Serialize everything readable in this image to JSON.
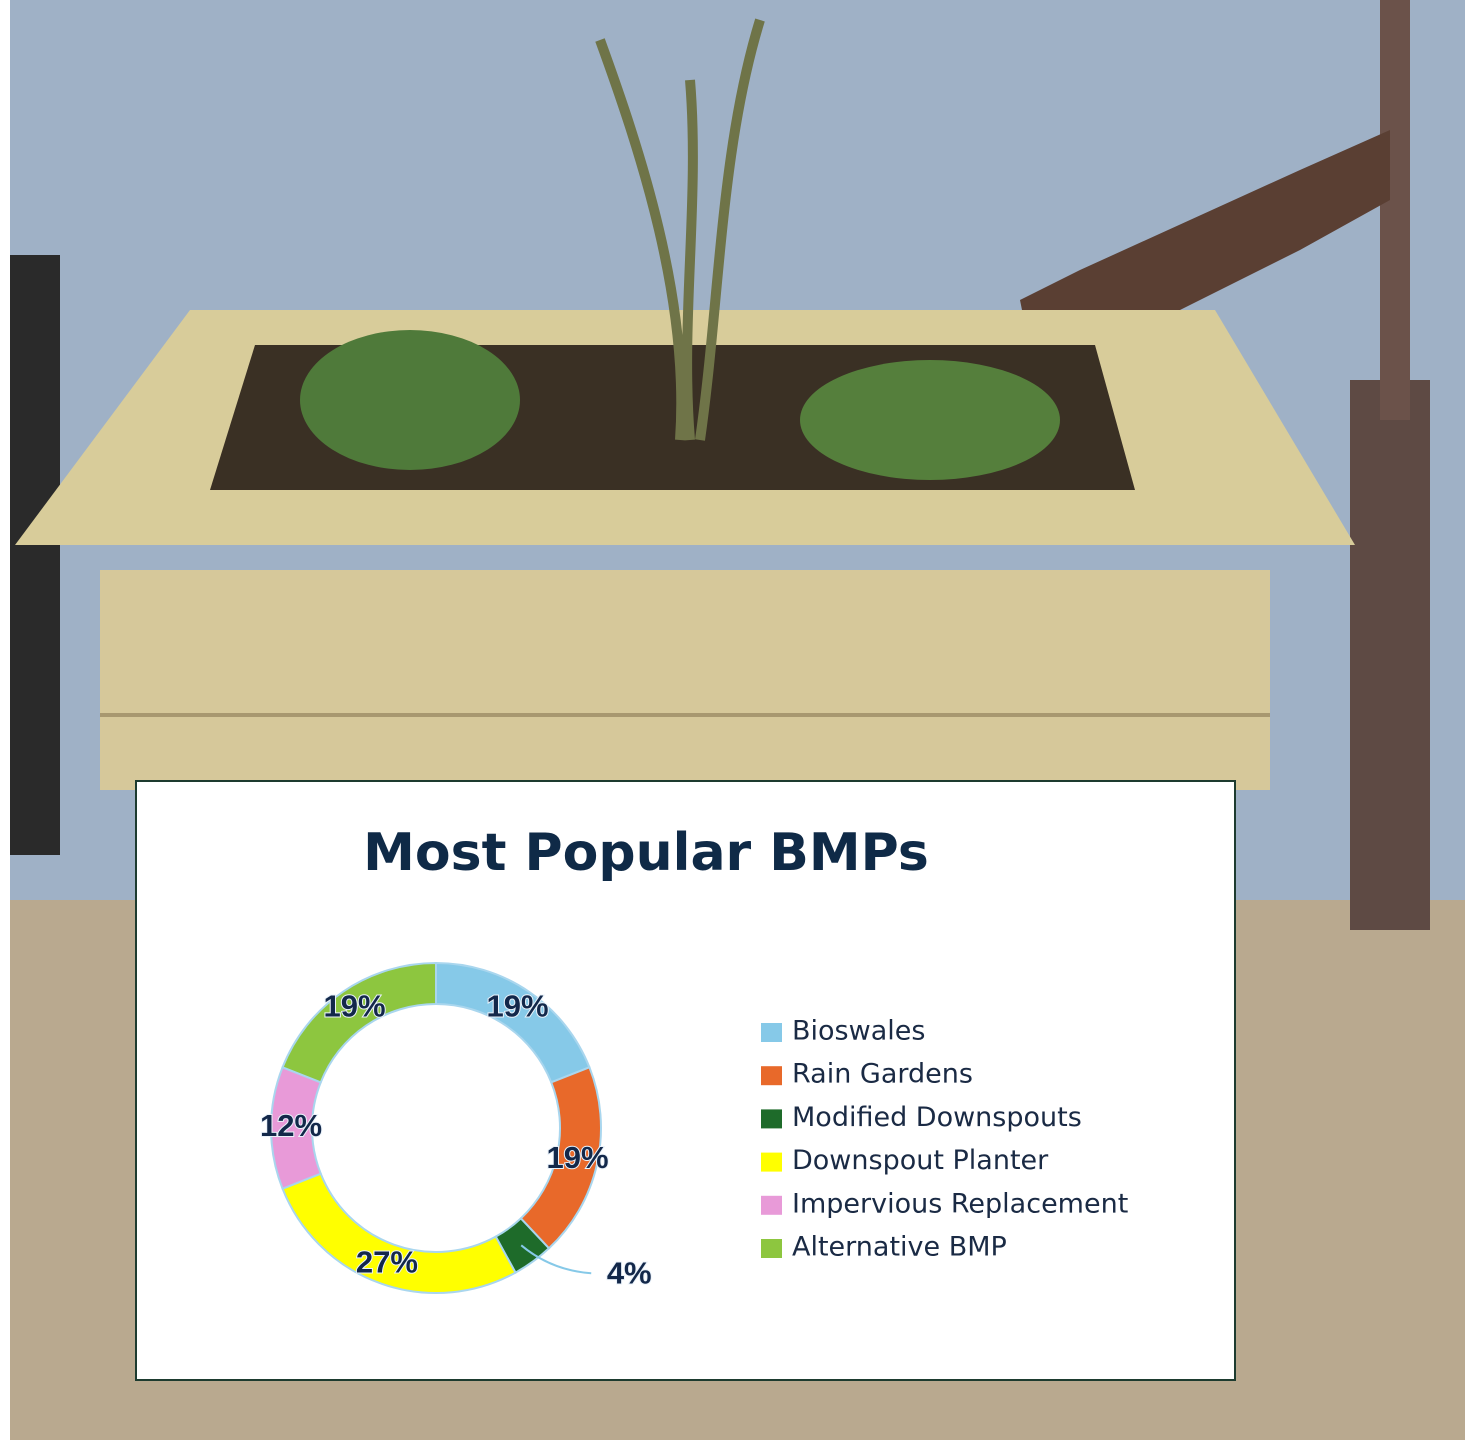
{
  "chart_data": {
    "type": "donut",
    "title": "Most Popular BMPs",
    "categories": [
      "Bioswales",
      "Rain Gardens",
      "Modified Downspouts",
      "Downspout Planter",
      "Impervious Replacement",
      "Alternative BMP"
    ],
    "values": [
      19,
      19,
      4,
      27,
      12,
      19
    ],
    "value_labels": [
      "19%",
      "19%",
      "4%",
      "27%",
      "12%",
      "19%"
    ],
    "colors": [
      "#86c9e8",
      "#e8692a",
      "#1e6b2a",
      "#ffff00",
      "#e89ad8",
      "#8dc63f"
    ],
    "legend": "right"
  }
}
